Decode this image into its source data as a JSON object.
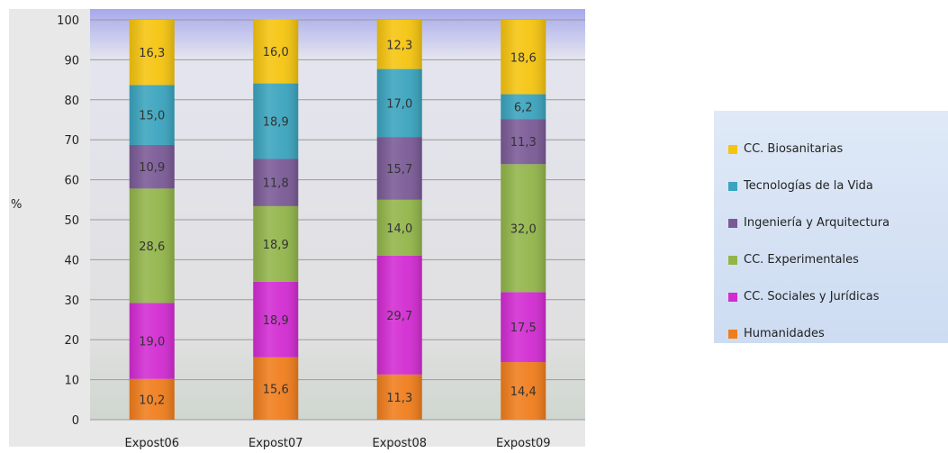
{
  "chart_data": {
    "type": "bar",
    "stacked": true,
    "categories": [
      "Expost06",
      "Expost07",
      "Expost08",
      "Expost09"
    ],
    "ylabel": "%",
    "ylim": [
      0,
      100
    ],
    "yticks": [
      "0",
      "10",
      "20",
      "30",
      "40",
      "50",
      "60",
      "70",
      "80",
      "90",
      "100"
    ],
    "grid": true,
    "legend_position": "right",
    "series": [
      {
        "name": "Humanidades",
        "color": "#f07d1c",
        "values": [
          10.2,
          15.6,
          11.3,
          14.4
        ],
        "labels": [
          "10,2",
          "15,6",
          "11,3",
          "14,4"
        ]
      },
      {
        "name": "CC. Sociales y Jurídicas",
        "color": "#d22bd2",
        "values": [
          19.0,
          18.9,
          29.7,
          17.5
        ],
        "labels": [
          "19,0",
          "18,9",
          "29,7",
          "17,5"
        ]
      },
      {
        "name": "CC. Experimentales",
        "color": "#92b54a",
        "values": [
          28.6,
          18.9,
          14.0,
          32.0
        ],
        "labels": [
          "28,6",
          "18,9",
          "14,0",
          "32,0"
        ]
      },
      {
        "name": "Ingeniería y Arquitectura",
        "color": "#7a5a96",
        "values": [
          10.9,
          11.8,
          15.7,
          11.3
        ],
        "labels": [
          "10,9",
          "11,8",
          "15,7",
          "11,3"
        ]
      },
      {
        "name": "Tecnologías de la Vida",
        "color": "#3aa4be",
        "values": [
          15.0,
          18.9,
          17.0,
          6.2
        ],
        "labels": [
          "15,0",
          "18,9",
          "17,0",
          "6,2"
        ]
      },
      {
        "name": "CC. Biosanitarias",
        "color": "#f5c40f",
        "values": [
          16.3,
          16.0,
          12.3,
          18.6
        ],
        "labels": [
          "16,3",
          "16,0",
          "12,3",
          "18,6"
        ]
      }
    ],
    "legend": [
      "CC. Biosanitarias",
      "Tecnologías de la Vida",
      "Ingeniería y Arquitectura",
      "CC. Experimentales",
      "CC. Sociales y Jurídicas",
      "Humanidades"
    ]
  },
  "colors": {
    "plot_background_top": "#a6a9eb",
    "plot_background_bottom": "#d7d7d7",
    "gridline": "#9a9a9a",
    "legend_background": "#d6e2f5"
  }
}
